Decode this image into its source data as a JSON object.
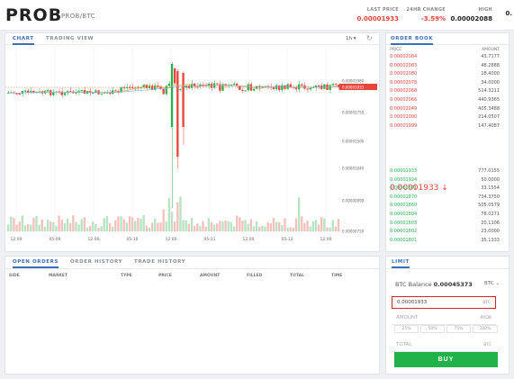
{
  "header": {
    "brand": "PROB",
    "pair": "PROB/BTC",
    "stats": [
      {
        "label": "LAST PRICE",
        "value": "0.00001933",
        "color": "#e8453c"
      },
      {
        "label": "24HR CHANGE",
        "value": "-3.59%",
        "color": "#e8453c"
      },
      {
        "label": "HIGH",
        "value": "0.00002088",
        "color": "#222222"
      },
      {
        "label": "",
        "value": "0.",
        "color": "#222222"
      }
    ]
  },
  "chart_panel": {
    "tabs": [
      "CHART",
      "TRADING VIEW"
    ],
    "timeframe": "1h ▾",
    "y_ticks": [
      "0.00001980",
      "0.00001933",
      "0.00001750",
      "0.00001500",
      "0.00001240",
      "0.00000999",
      "0.00000750"
    ],
    "x_ticks": [
      "12:00",
      "05-09",
      "12:00",
      "05-10",
      "12:00",
      "05-11",
      "12:00",
      "05-12",
      "12:00"
    ]
  },
  "order_book": {
    "tab": "ORDER BOOK",
    "headers": {
      "price": "PRICE",
      "amount": "AMOUNT"
    },
    "asks": [
      {
        "price": "0.00002084",
        "amount": "43.7177"
      },
      {
        "price": "0.00002083",
        "amount": "48.2888"
      },
      {
        "price": "0.00002080",
        "amount": "18.4000"
      },
      {
        "price": "0.00002078",
        "amount": "34.0000"
      },
      {
        "price": "0.00002068",
        "amount": "514.3211"
      },
      {
        "price": "0.00002066",
        "amount": "440.9365"
      },
      {
        "price": "0.00002049",
        "amount": "405.3488"
      },
      {
        "price": "0.00002000",
        "amount": "214.0507"
      },
      {
        "price": "0.00001999",
        "amount": "147.4087"
      }
    ],
    "last_price": "0.00001933 ↓",
    "bids": [
      {
        "price": "0.00001933",
        "amount": "777.0155"
      },
      {
        "price": "0.00001924",
        "amount": "50.0000"
      },
      {
        "price": "0.00001871",
        "amount": "33.1554"
      },
      {
        "price": "0.00001870",
        "amount": "734.3750"
      },
      {
        "price": "0.00001860",
        "amount": "505.0579"
      },
      {
        "price": "0.00001804",
        "amount": "78.0271"
      },
      {
        "price": "0.00001803",
        "amount": "20.1106"
      },
      {
        "price": "0.00001802",
        "amount": "23.0000"
      },
      {
        "price": "0.00001801",
        "amount": "35.1333"
      }
    ]
  },
  "orders_panel": {
    "tabs": [
      "OPEN ORDERS",
      "ORDER HISTORY",
      "TRADE HISTORY"
    ],
    "columns": [
      "SIDE",
      "MARKET",
      "TYPE",
      "PRICE",
      "AMOUNT",
      "FILLED",
      "TOTAL",
      "TIME"
    ]
  },
  "limit_panel": {
    "tab": "LIMIT",
    "balance_label": "BTC Balance",
    "balance_value": "0.00045373",
    "currency_select": "BTC ⌄",
    "price_value": "0.00001933",
    "price_unit": "BTC",
    "amount_placeholder": "AMOUNT",
    "amount_unit": "PROB",
    "percents": [
      "25%",
      "50%",
      "75%",
      "100%"
    ],
    "total_placeholder": "TOTAL",
    "total_unit": "BTC",
    "buy_label": "BUY"
  }
}
